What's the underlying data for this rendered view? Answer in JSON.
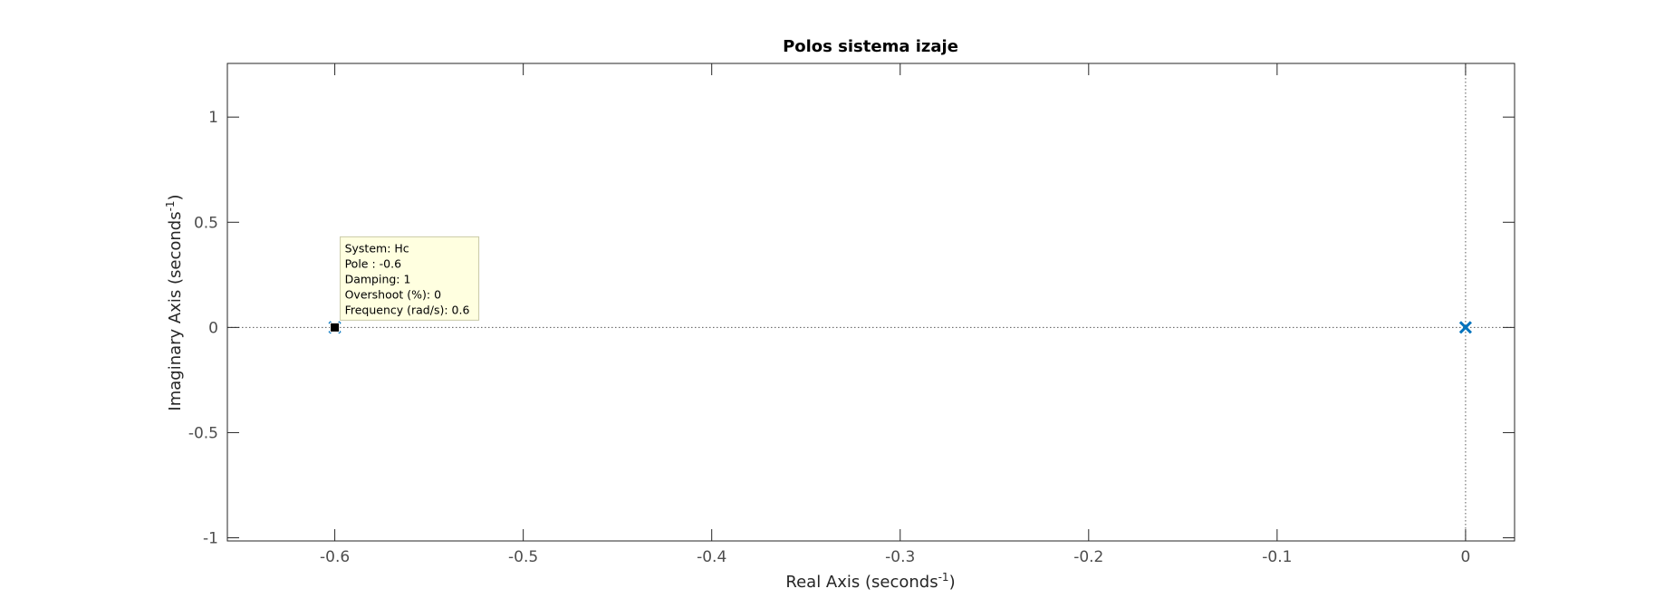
{
  "chart_data": {
    "type": "scatter",
    "title": "Polos sistema izaje",
    "xlabel": "Real Axis (seconds",
    "xlabel_sup": "-1",
    "xlabel_end": ")",
    "ylabel": "Imaginary Axis (seconds",
    "ylabel_sup": "-1",
    "ylabel_end": ")",
    "xlim": [
      -0.657,
      0.026
    ],
    "ylim": [
      -1.015,
      1.255
    ],
    "x_ticks": [
      -0.6,
      -0.5,
      -0.4,
      -0.3,
      -0.2,
      -0.1,
      0
    ],
    "x_tick_labels": [
      "-0.6",
      "-0.5",
      "-0.4",
      "-0.3",
      "-0.2",
      "-0.1",
      "0"
    ],
    "y_ticks": [
      -1,
      -0.5,
      0,
      0.5,
      1
    ],
    "y_tick_labels": [
      "-1",
      "-0.5",
      "0",
      "0.5",
      "1"
    ],
    "grid": false,
    "marker": "x",
    "series": [
      {
        "name": "Hc",
        "color": "#0072bd",
        "points": [
          {
            "x": -0.6,
            "y": 0
          },
          {
            "x": 0,
            "y": 0
          }
        ]
      }
    ],
    "datatip": {
      "x": -0.6,
      "y": 0,
      "lines": [
        "System: Hc",
        "Pole : -0.6",
        "Damping: 1",
        "Overshoot (%): 0",
        "Frequency (rad/s): 0.6"
      ]
    }
  }
}
